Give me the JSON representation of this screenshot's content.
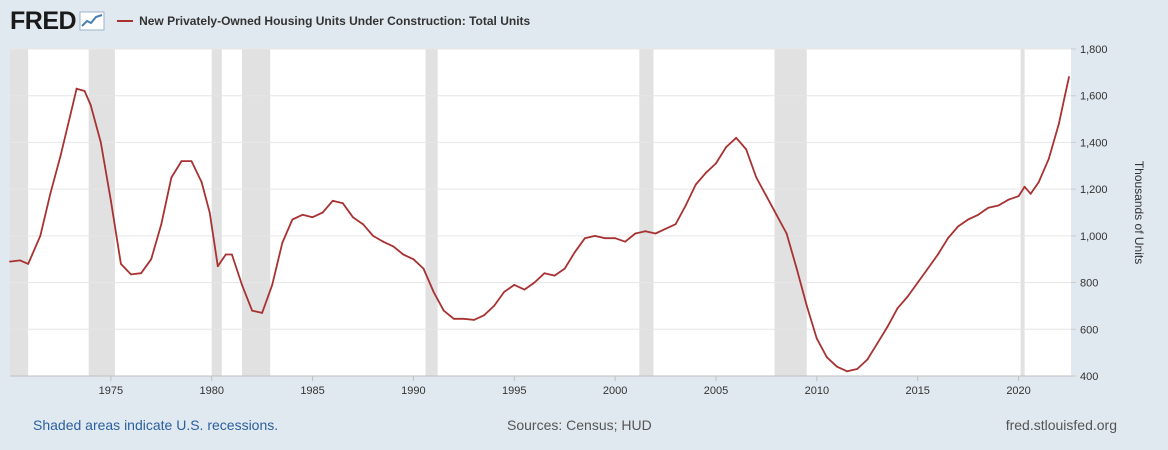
{
  "header": {
    "logo_text": "FRED",
    "logo_icon": "line-chart-icon",
    "series_label": "New Privately-Owned Housing Units Under Construction: Total Units"
  },
  "footer": {
    "recession_note": "Shaded areas indicate U.S. recessions.",
    "sources": "Sources: Census; HUD",
    "site": "fred.stlouisfed.org"
  },
  "colors": {
    "background": "#e1e9f0",
    "plot_background": "#ffffff",
    "line": "#a83232",
    "recession": "#e1e1e1",
    "gridline": "#e6e6e6",
    "link": "#2a5f9e"
  },
  "chart_data": {
    "type": "line",
    "title": "",
    "xlabel": "",
    "ylabel": "Thousands of Units",
    "xlim": [
      1970.0,
      2022.6
    ],
    "ylim": [
      400,
      1800
    ],
    "x_ticks": [
      1975,
      1980,
      1985,
      1990,
      1995,
      2000,
      2005,
      2010,
      2015,
      2020
    ],
    "y_ticks": [
      400,
      600,
      800,
      1000,
      1200,
      1400,
      1600,
      1800
    ],
    "y_tick_labels": [
      "400",
      "600",
      "800",
      "1,000",
      "1,200",
      "1,400",
      "1,600",
      "1,800"
    ],
    "y_axis_side": "right",
    "grid": "horizontal",
    "recessions": [
      [
        1969.9,
        1970.9
      ],
      [
        1973.9,
        1975.2
      ],
      [
        1980.0,
        1980.5
      ],
      [
        1981.5,
        1982.9
      ],
      [
        1990.6,
        1991.2
      ],
      [
        2001.2,
        2001.9
      ],
      [
        2007.9,
        2009.5
      ],
      [
        2020.1,
        2020.3
      ]
    ],
    "series": [
      {
        "name": "New Privately-Owned Housing Units Under Construction: Total Units",
        "x": [
          1970.0,
          1970.5,
          1970.9,
          1971.5,
          1972.0,
          1972.5,
          1973.0,
          1973.3,
          1973.7,
          1974.0,
          1974.5,
          1975.0,
          1975.5,
          1976.0,
          1976.5,
          1977.0,
          1977.5,
          1978.0,
          1978.5,
          1979.0,
          1979.5,
          1979.9,
          1980.3,
          1980.7,
          1981.0,
          1981.5,
          1982.0,
          1982.5,
          1983.0,
          1983.5,
          1984.0,
          1984.5,
          1985.0,
          1985.5,
          1986.0,
          1986.5,
          1987.0,
          1987.5,
          1988.0,
          1988.5,
          1989.0,
          1989.5,
          1990.0,
          1990.5,
          1991.0,
          1991.5,
          1992.0,
          1992.5,
          1993.0,
          1993.5,
          1994.0,
          1994.5,
          1995.0,
          1995.5,
          1996.0,
          1996.5,
          1997.0,
          1997.5,
          1998.0,
          1998.5,
          1999.0,
          1999.5,
          2000.0,
          2000.5,
          2001.0,
          2001.5,
          2002.0,
          2002.5,
          2003.0,
          2003.5,
          2004.0,
          2004.5,
          2005.0,
          2005.5,
          2006.0,
          2006.5,
          2007.0,
          2007.5,
          2008.0,
          2008.5,
          2009.0,
          2009.5,
          2010.0,
          2010.5,
          2011.0,
          2011.5,
          2012.0,
          2012.5,
          2013.0,
          2013.5,
          2014.0,
          2014.5,
          2015.0,
          2015.5,
          2016.0,
          2016.5,
          2017.0,
          2017.5,
          2018.0,
          2018.5,
          2019.0,
          2019.5,
          2020.0,
          2020.3,
          2020.6,
          2021.0,
          2021.5,
          2022.0,
          2022.3,
          2022.5
        ],
        "values": [
          890,
          895,
          880,
          1000,
          1180,
          1340,
          1520,
          1630,
          1620,
          1560,
          1400,
          1150,
          880,
          835,
          840,
          900,
          1050,
          1250,
          1320,
          1320,
          1230,
          1100,
          870,
          920,
          920,
          790,
          680,
          670,
          790,
          970,
          1070,
          1090,
          1080,
          1100,
          1150,
          1140,
          1080,
          1050,
          1000,
          975,
          955,
          920,
          900,
          860,
          760,
          680,
          645,
          645,
          640,
          660,
          700,
          760,
          790,
          770,
          800,
          840,
          830,
          860,
          930,
          990,
          1000,
          990,
          990,
          975,
          1010,
          1020,
          1010,
          1030,
          1050,
          1130,
          1220,
          1270,
          1310,
          1380,
          1420,
          1370,
          1250,
          1170,
          1090,
          1010,
          860,
          700,
          560,
          480,
          440,
          420,
          430,
          470,
          540,
          610,
          690,
          740,
          800,
          860,
          920,
          990,
          1040,
          1070,
          1090,
          1120,
          1130,
          1155,
          1170,
          1210,
          1180,
          1230,
          1330,
          1480,
          1600,
          1680
        ]
      }
    ]
  }
}
